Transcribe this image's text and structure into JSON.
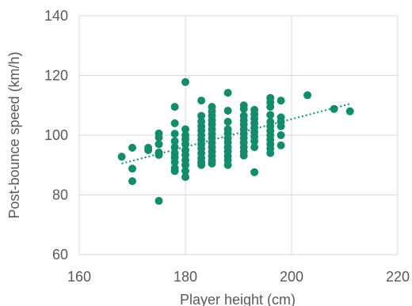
{
  "chart_data": {
    "type": "scatter",
    "xlabel": "Player height (cm)",
    "ylabel": "Post-bounce speed (km/h)",
    "xlim": [
      160,
      220
    ],
    "ylim": [
      60,
      140
    ],
    "xticks": [
      "160",
      "180",
      "200",
      "220"
    ],
    "yticks": [
      "60",
      "80",
      "100",
      "120",
      "140"
    ],
    "grid": true,
    "trendline": {
      "type": "linear",
      "style": "dotted",
      "x": [
        168,
        211
      ],
      "y": [
        90.5,
        110.5
      ]
    },
    "marker_color": "#138c6c",
    "points": [
      [
        168,
        92.8
      ],
      [
        170,
        95.8
      ],
      [
        170,
        88.8
      ],
      [
        170,
        84.6
      ],
      [
        173,
        95.8
      ],
      [
        173,
        95.0
      ],
      [
        175,
        100.6
      ],
      [
        175,
        99.2
      ],
      [
        175,
        97.0
      ],
      [
        175,
        94.2
      ],
      [
        175,
        93.4
      ],
      [
        175,
        78.0
      ],
      [
        178,
        109.5
      ],
      [
        178,
        104.0
      ],
      [
        178,
        100.5
      ],
      [
        178,
        98.0
      ],
      [
        178,
        96.0
      ],
      [
        178,
        94.0
      ],
      [
        178,
        92.6
      ],
      [
        178,
        91.0
      ],
      [
        178,
        89.0
      ],
      [
        178,
        88.0
      ],
      [
        180,
        117.8
      ],
      [
        180,
        102.0
      ],
      [
        180,
        100.0
      ],
      [
        180,
        98.6
      ],
      [
        180,
        97.0
      ],
      [
        180,
        95.0
      ],
      [
        180,
        93.4
      ],
      [
        180,
        91.6
      ],
      [
        180,
        90.0
      ],
      [
        180,
        88.0
      ],
      [
        180,
        86.0
      ],
      [
        183,
        111.6
      ],
      [
        183,
        106.5
      ],
      [
        183,
        104.6
      ],
      [
        183,
        103.0
      ],
      [
        183,
        101.6
      ],
      [
        183,
        100.0
      ],
      [
        183,
        98.5
      ],
      [
        183,
        97.0
      ],
      [
        183,
        95.6
      ],
      [
        183,
        94.0
      ],
      [
        183,
        92.4
      ],
      [
        183,
        91.0
      ],
      [
        183,
        90.0
      ],
      [
        185,
        109.5
      ],
      [
        185,
        108.0
      ],
      [
        185,
        106.5
      ],
      [
        185,
        105.0
      ],
      [
        185,
        103.6
      ],
      [
        185,
        102.0
      ],
      [
        185,
        100.5
      ],
      [
        185,
        99.0
      ],
      [
        185,
        97.5
      ],
      [
        185,
        96.0
      ],
      [
        185,
        94.5
      ],
      [
        185,
        93.0
      ],
      [
        185,
        91.5
      ],
      [
        185,
        90.5
      ],
      [
        188,
        114.2
      ],
      [
        188,
        108.2
      ],
      [
        188,
        104.5
      ],
      [
        188,
        102.0
      ],
      [
        188,
        100.6
      ],
      [
        188,
        99.0
      ],
      [
        188,
        97.6
      ],
      [
        188,
        96.0
      ],
      [
        188,
        94.6
      ],
      [
        188,
        93.0
      ],
      [
        188,
        91.6
      ],
      [
        188,
        90.0
      ],
      [
        191,
        110.0
      ],
      [
        191,
        108.8
      ],
      [
        191,
        106.5
      ],
      [
        191,
        105.0
      ],
      [
        191,
        103.6
      ],
      [
        191,
        102.0
      ],
      [
        191,
        100.5
      ],
      [
        191,
        99.0
      ],
      [
        191,
        97.5
      ],
      [
        191,
        96.0
      ],
      [
        191,
        94.5
      ],
      [
        191,
        93.2
      ],
      [
        193,
        108.5
      ],
      [
        193,
        107.0
      ],
      [
        193,
        105.5
      ],
      [
        193,
        104.0
      ],
      [
        193,
        102.5
      ],
      [
        193,
        101.0
      ],
      [
        193,
        99.5
      ],
      [
        193,
        98.0
      ],
      [
        193,
        96.0
      ],
      [
        193,
        87.6
      ],
      [
        196,
        112.5
      ],
      [
        196,
        111.0
      ],
      [
        196,
        109.5
      ],
      [
        196,
        106.8
      ],
      [
        196,
        104.5
      ],
      [
        196,
        103.0
      ],
      [
        196,
        101.5
      ],
      [
        196,
        100.0
      ],
      [
        196,
        98.5
      ],
      [
        196,
        97.0
      ],
      [
        196,
        95.5
      ],
      [
        196,
        94.0
      ],
      [
        198,
        111.6
      ],
      [
        198,
        106.0
      ],
      [
        198,
        104.5
      ],
      [
        198,
        103.0
      ],
      [
        198,
        100.0
      ],
      [
        198,
        96.6
      ],
      [
        203,
        113.4
      ],
      [
        208,
        108.8
      ],
      [
        211,
        108.0
      ]
    ]
  }
}
